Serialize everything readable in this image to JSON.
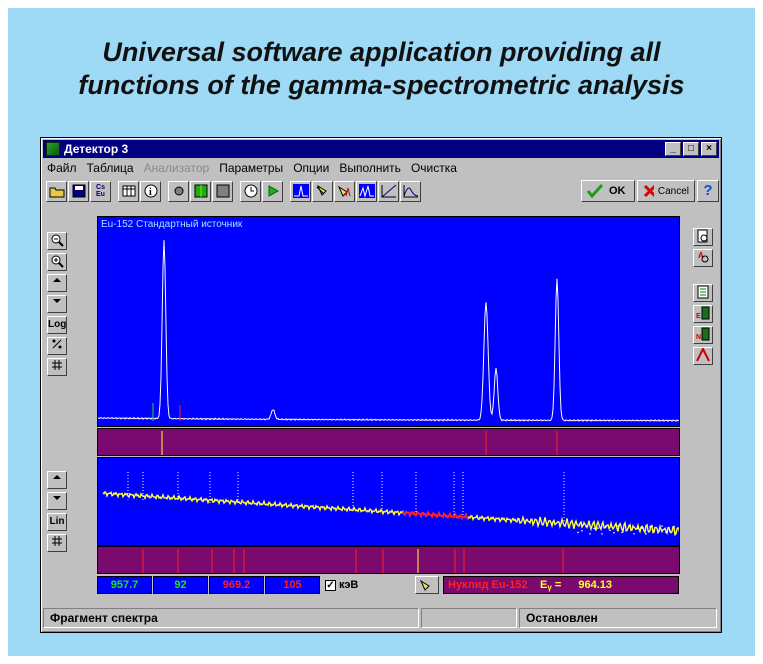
{
  "headline": {
    "line1": "Universal software application providing all",
    "line2": "functions of the gamma-spectrometric analysis"
  },
  "window": {
    "title": "Детектор 3",
    "controls": [
      "_",
      "□",
      "×"
    ]
  },
  "menu": [
    {
      "label": "Файл",
      "enabled": true
    },
    {
      "label": "Таблица",
      "enabled": true
    },
    {
      "label": "Анализатор",
      "enabled": false
    },
    {
      "label": "Параметры",
      "enabled": true
    },
    {
      "label": "Опции",
      "enabled": true
    },
    {
      "label": "Выполнить",
      "enabled": true
    },
    {
      "label": "Очистка",
      "enabled": true
    }
  ],
  "toolbar": {
    "cs_eu_label": "Cs\nEu",
    "ok_label": "OK",
    "cancel_label": "Cancel",
    "help_label": "?"
  },
  "left_tools_top": [
    "zoom-out",
    "zoom-in",
    "up",
    "down",
    "Log",
    "percent",
    "grid"
  ],
  "left_tools_top_labels": {
    "log": "Log"
  },
  "left_tools_bottom_labels": {
    "lin": "Lin"
  },
  "spectrum": {
    "caption": "Eu-152 Стандартный источник"
  },
  "readout": {
    "energy_left": "957.7",
    "channel_left": "92",
    "energy_right": "969.2",
    "channel_right": "105",
    "kev_label": "кэВ",
    "kev_checked": true,
    "nuclide_text": "Нуклид Eu-152",
    "egamma_label": "E",
    "egamma_sub": "γ",
    "egamma_eq": " = ",
    "egamma_value": "964.13"
  },
  "status": {
    "left": "Фрагмент спектра",
    "right": "Остановлен"
  },
  "colors": {
    "plot_bg": "#0000ff",
    "band_bg": "#7a0a6e",
    "title_bar": "#000080",
    "page_bg": "#9ed9f5"
  }
}
